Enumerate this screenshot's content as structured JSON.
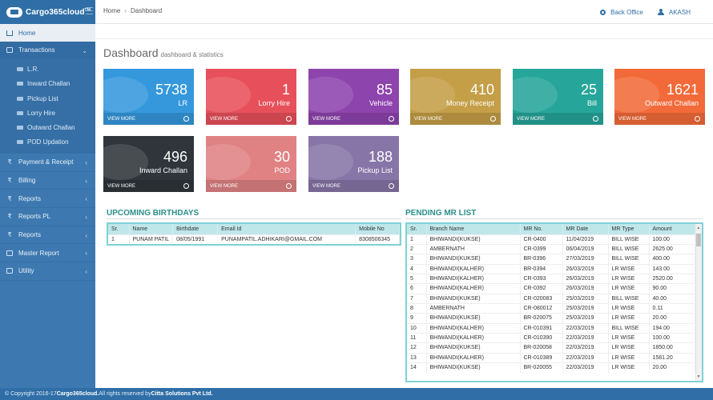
{
  "brand": {
    "name": "Cargo365cloud",
    "tm": "TM"
  },
  "header": {
    "back_office": "Back Office",
    "user": "AKASH"
  },
  "sidebar": {
    "home": "Home",
    "transactions": "Transactions",
    "sub_items": [
      "L.R.",
      "Inward Challan",
      "Pickup List",
      "Lorry Hire",
      "Outward Challan",
      "POD Updation"
    ],
    "items": [
      "Payment & Receipt",
      "Billing",
      "Reports",
      "Reports PL",
      "Reports",
      "Master Report",
      "Utility"
    ]
  },
  "breadcrumb": {
    "home": "Home",
    "current": "Dashboard"
  },
  "page": {
    "title": "Dashboard",
    "subtitle": "dashboard & statistics"
  },
  "tiles": [
    {
      "value": "5738",
      "label": "LR",
      "more": "VIEW MORE",
      "color": "#3598dc"
    },
    {
      "value": "1",
      "label": "Lorry Hire",
      "more": "VIEW MORE",
      "color": "#e7505a"
    },
    {
      "value": "85",
      "label": "Vehicle",
      "more": "VIEW MORE",
      "color": "#8e44ad"
    },
    {
      "value": "410",
      "label": "Money Receipt",
      "more": "VIEW MORE",
      "color": "#c49f47"
    },
    {
      "value": "25",
      "label": "Bill",
      "more": "VIEW MORE",
      "color": "#26a69a"
    },
    {
      "value": "1621",
      "label": "Outward Challan",
      "more": "VIEW MORE",
      "color": "#f36a3a"
    },
    {
      "value": "496",
      "label": "Inward Challan",
      "more": "VIEW MORE",
      "color": "#2f353b"
    },
    {
      "value": "30",
      "label": "POD",
      "more": "VIEW MORE",
      "color": "#e08283"
    },
    {
      "value": "188",
      "label": "Pickup List",
      "more": "VIEW MORE",
      "color": "#8775a7"
    }
  ],
  "birthdays": {
    "title": "UPCOMING BIRTHDAYS",
    "headers": [
      "Sr.",
      "Name",
      "Birthdate",
      "Email Id",
      "Mobile No"
    ],
    "rows": [
      [
        "1",
        "PUNAM PATIL",
        "08/05/1991",
        "PUNAMPATIL.ADHIKARI@GMAIL.COM",
        "8308506345"
      ]
    ]
  },
  "mr": {
    "title": "PENDING MR LIST",
    "headers": [
      "Sr.",
      "Branch Name",
      "MR No.",
      "MR Date",
      "MR Type",
      "Amount"
    ],
    "rows": [
      [
        "1",
        "BHIWANDI(KUKSE)",
        "CR-0400",
        "11/04/2019",
        "BILL WISE",
        "100.00"
      ],
      [
        "2",
        "AMBERNATH",
        "CR-0399",
        "06/04/2019",
        "BILL WISE",
        "2625.00"
      ],
      [
        "3",
        "BHIWANDI(KUKSE)",
        "BR-0396",
        "27/03/2019",
        "BILL WISE",
        "400.00"
      ],
      [
        "4",
        "BHIWANDI(KALHER)",
        "BR-0394",
        "26/03/2019",
        "LR WISE",
        "143.00"
      ],
      [
        "5",
        "BHIWANDI(KALHER)",
        "CR-0393",
        "26/03/2019",
        "LR WISE",
        "2520.00"
      ],
      [
        "6",
        "BHIWANDI(KALHER)",
        "CR-0392",
        "26/03/2019",
        "LR WISE",
        "90.00"
      ],
      [
        "7",
        "BHIWANDI(KUKSE)",
        "CR-020083",
        "25/03/2019",
        "BILL WISE",
        "40.00"
      ],
      [
        "8",
        "AMBERNATH",
        "CR-080012",
        "25/03/2019",
        "LR WISE",
        "0.11"
      ],
      [
        "9",
        "BHIWANDI(KUKSE)",
        "BR-020075",
        "25/03/2019",
        "LR WISE",
        "20.00"
      ],
      [
        "10",
        "BHIWANDI(KALHER)",
        "CR-010391",
        "22/03/2019",
        "BILL WISE",
        "194.00"
      ],
      [
        "11",
        "BHIWANDI(KALHER)",
        "CR-010390",
        "22/03/2019",
        "LR WISE",
        "100.00"
      ],
      [
        "12",
        "BHIWANDI(KUKSE)",
        "BR-020058",
        "22/03/2019",
        "LR WISE",
        "1850.00"
      ],
      [
        "13",
        "BHIWANDI(KALHER)",
        "CR-010389",
        "22/03/2019",
        "LR WISE",
        "1581.20"
      ],
      [
        "14",
        "BHIWANDI(KUKSE)",
        "BR-020055",
        "22/03/2019",
        "LR WISE",
        "20.00"
      ]
    ]
  },
  "footer": {
    "prefix": "© Copyright 2016-17 ",
    "brand": "Cargo365cloud.",
    "middle": " All rights reserved by ",
    "company": "Citta Solutions Pvt Ltd."
  }
}
